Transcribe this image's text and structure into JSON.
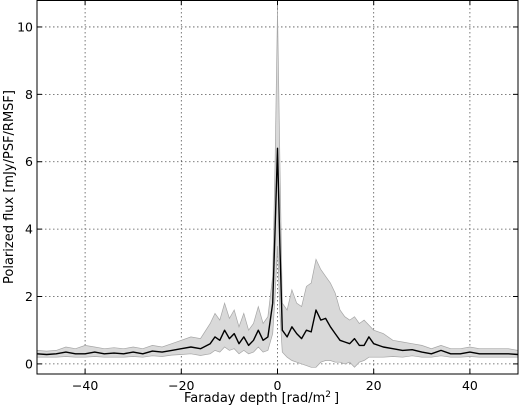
{
  "chart_data": {
    "type": "line",
    "title": "",
    "xlabel": "Faraday depth [rad/m",
    "xlabel_superscript": "2",
    "xlabel_suffix": "]",
    "ylabel": "Polarized flux [mJy/PSF/RMSF]",
    "xlim": [
      -50,
      50
    ],
    "ylim": [
      -0.3,
      10.8
    ],
    "xticks": [
      -40,
      -20,
      0,
      20,
      40
    ],
    "yticks": [
      0,
      2,
      4,
      6,
      8,
      10
    ],
    "grid": true,
    "grid_style": "dotted",
    "legend": "none",
    "colors": {
      "line": "#000000",
      "band": "#d9d9d9",
      "band_edge": "#a6a6a6",
      "axes": "#000000",
      "grid": "#555555"
    },
    "series": [
      {
        "x": [
          -50,
          -48,
          -46,
          -44,
          -42,
          -40,
          -38,
          -36,
          -34,
          -32,
          -30,
          -28,
          -26,
          -24,
          -22,
          -20,
          -18,
          -16,
          -14,
          -13,
          -12,
          -11,
          -10,
          -9,
          -8,
          -7,
          -6,
          -5,
          -4,
          -3,
          -2,
          -1,
          -0.5,
          0,
          0.5,
          1,
          2,
          3,
          4,
          5,
          6,
          7,
          8,
          9,
          10,
          11,
          12,
          13,
          14,
          15,
          16,
          17,
          18,
          19,
          20,
          22,
          24,
          26,
          28,
          30,
          32,
          34,
          36,
          38,
          40,
          42,
          44,
          46,
          48,
          50
        ],
        "y": [
          0.3,
          0.28,
          0.3,
          0.35,
          0.3,
          0.3,
          0.35,
          0.3,
          0.32,
          0.3,
          0.35,
          0.3,
          0.38,
          0.35,
          0.4,
          0.45,
          0.5,
          0.45,
          0.6,
          0.8,
          0.7,
          1.0,
          0.75,
          0.9,
          0.6,
          0.8,
          0.55,
          0.7,
          1.0,
          0.7,
          0.8,
          1.8,
          4.0,
          6.4,
          3.5,
          1.0,
          0.8,
          1.1,
          0.9,
          0.75,
          1.0,
          0.95,
          1.6,
          1.3,
          1.35,
          1.1,
          0.9,
          0.7,
          0.65,
          0.6,
          0.75,
          0.55,
          0.55,
          0.8,
          0.6,
          0.5,
          0.45,
          0.4,
          0.42,
          0.35,
          0.3,
          0.4,
          0.3,
          0.3,
          0.35,
          0.3,
          0.3,
          0.3,
          0.3,
          0.28
        ],
        "lower": [
          0.2,
          0.2,
          0.2,
          0.22,
          0.2,
          0.2,
          0.22,
          0.2,
          0.2,
          0.2,
          0.22,
          0.2,
          0.24,
          0.22,
          0.26,
          0.28,
          0.3,
          0.25,
          0.3,
          0.4,
          0.35,
          0.5,
          0.4,
          0.45,
          0.3,
          0.4,
          0.3,
          0.35,
          0.5,
          0.35,
          0.4,
          0.9,
          2.0,
          3.5,
          1.5,
          0.35,
          0.2,
          0.1,
          0.05,
          0.0,
          -0.05,
          -0.1,
          -0.1,
          0.05,
          0.1,
          0.1,
          0.05,
          0.05,
          0.0,
          0.05,
          -0.1,
          0.05,
          0.1,
          0.2,
          0.2,
          0.2,
          0.22,
          0.2,
          0.24,
          0.2,
          0.2,
          0.24,
          0.2,
          0.2,
          0.22,
          0.2,
          0.2,
          0.2,
          0.2,
          0.2
        ],
        "upper": [
          0.4,
          0.38,
          0.4,
          0.5,
          0.45,
          0.55,
          0.5,
          0.45,
          0.48,
          0.45,
          0.5,
          0.45,
          0.55,
          0.5,
          0.6,
          0.7,
          0.8,
          0.75,
          1.2,
          1.5,
          1.3,
          1.8,
          1.35,
          1.6,
          1.1,
          1.5,
          1.0,
          1.2,
          1.7,
          1.2,
          1.4,
          2.6,
          6.0,
          10.5,
          6.0,
          1.8,
          1.6,
          2.2,
          1.8,
          1.7,
          2.3,
          2.4,
          3.1,
          2.8,
          2.6,
          2.4,
          2.1,
          1.6,
          1.4,
          1.3,
          1.4,
          1.2,
          1.3,
          1.15,
          1.0,
          0.9,
          0.7,
          0.65,
          0.6,
          0.55,
          0.45,
          0.55,
          0.45,
          0.45,
          0.5,
          0.45,
          0.45,
          0.45,
          0.45,
          0.4
        ]
      }
    ]
  }
}
